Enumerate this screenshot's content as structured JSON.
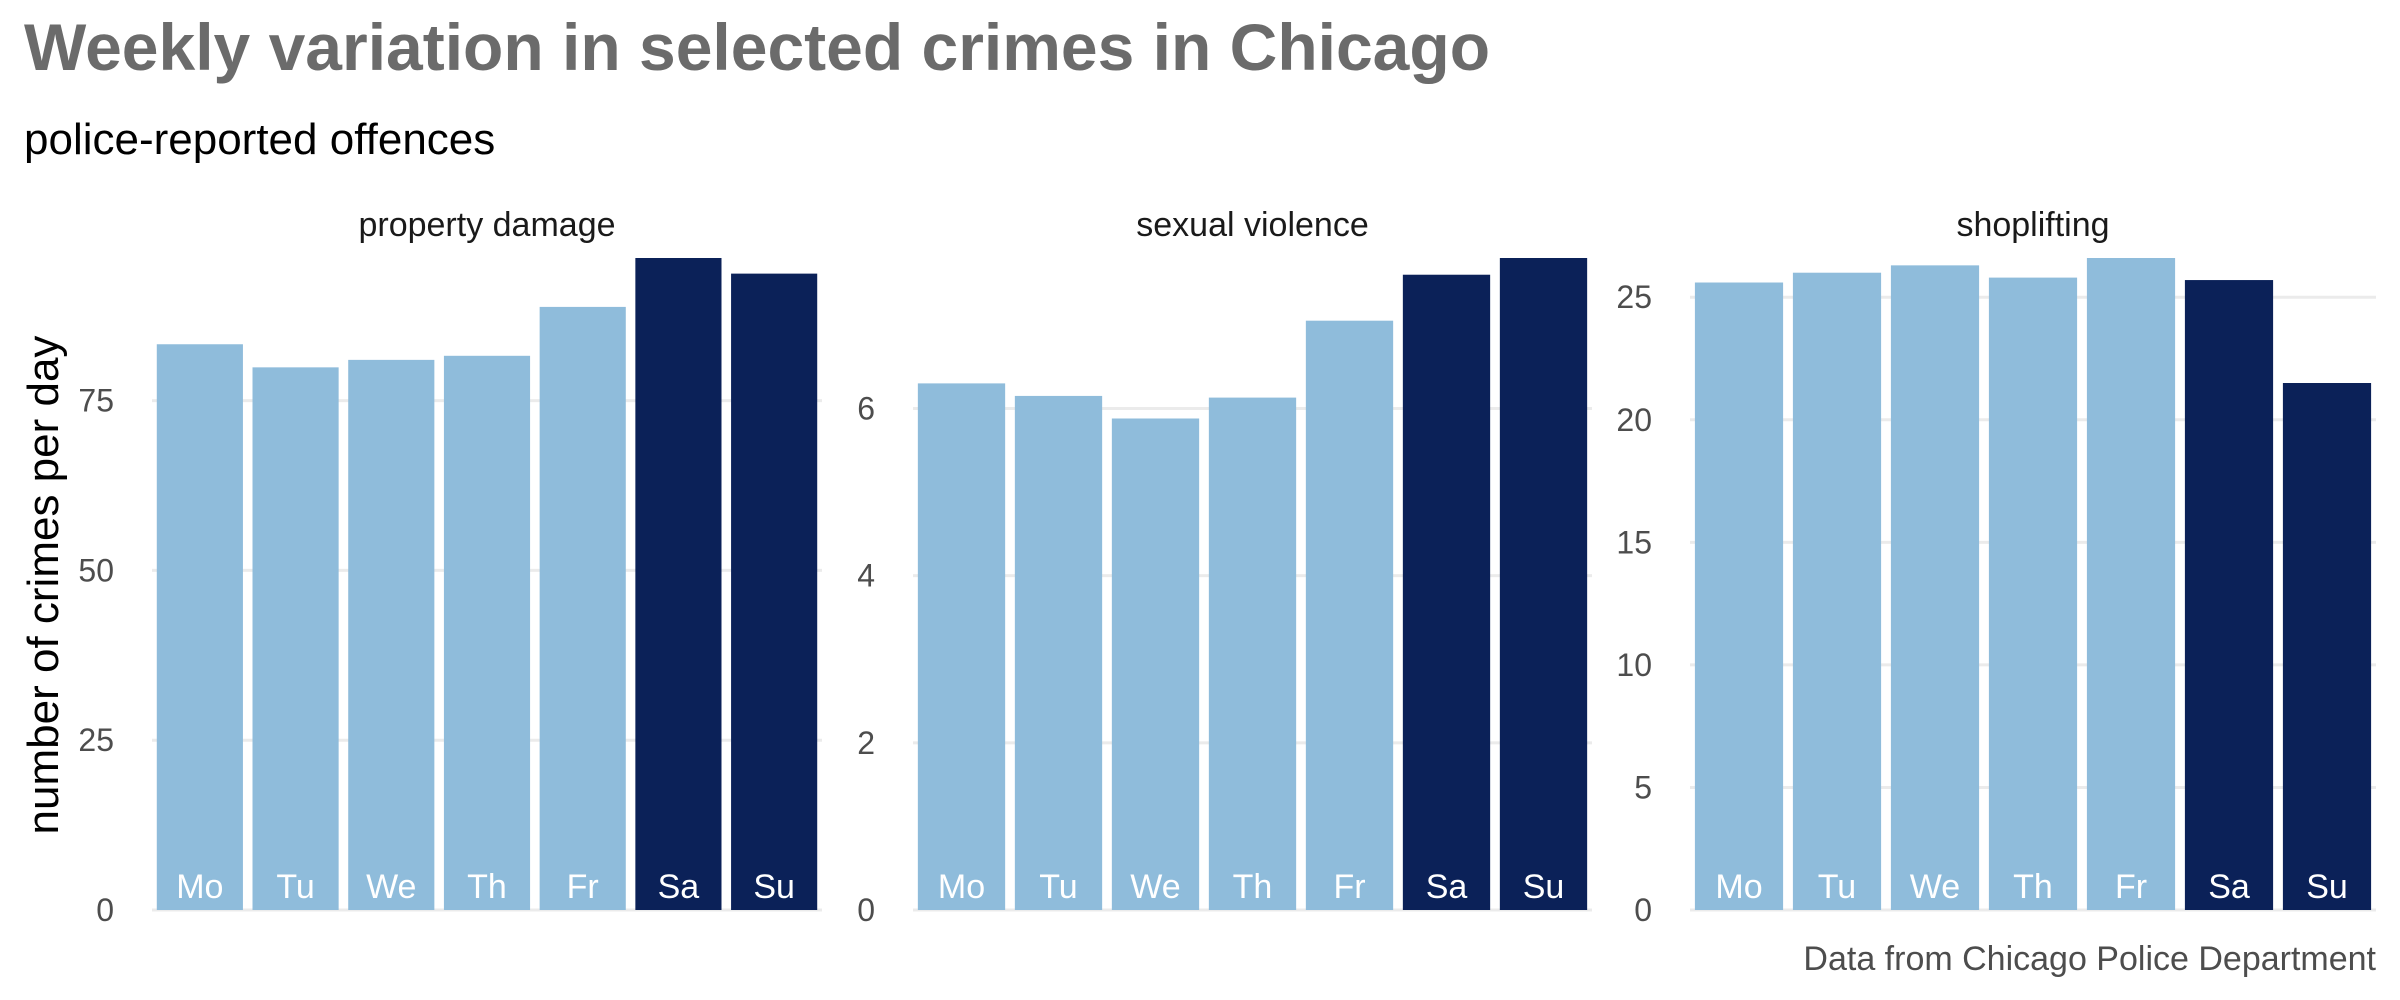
{
  "title": "Weekly variation in selected crimes in Chicago",
  "subtitle": "police-reported offences",
  "caption": "Data from Chicago Police Department",
  "colors": {
    "weekday": "#8fbcdb",
    "weekend": "#0b2158",
    "title": "#6b6b6b",
    "grid": "#ebebeb"
  },
  "chart_data": [
    {
      "type": "bar",
      "title": "property damage",
      "ylabel": "number of crimes per day",
      "categories": [
        "Mo",
        "Tu",
        "We",
        "Th",
        "Fr",
        "Sa",
        "Su"
      ],
      "weekend": [
        false,
        false,
        false,
        false,
        false,
        true,
        true
      ],
      "values": [
        83.3,
        79.9,
        81.0,
        81.6,
        88.8,
        96.0,
        93.7
      ],
      "ylim": [
        0,
        96
      ],
      "yticks": [
        0,
        25,
        50,
        75
      ],
      "grid": true
    },
    {
      "type": "bar",
      "title": "sexual violence",
      "categories": [
        "Mo",
        "Tu",
        "We",
        "Th",
        "Fr",
        "Sa",
        "Su"
      ],
      "weekend": [
        false,
        false,
        false,
        false,
        false,
        true,
        true
      ],
      "values": [
        6.3,
        6.15,
        5.88,
        6.13,
        7.05,
        7.6,
        7.8
      ],
      "ylim": [
        0,
        7.8
      ],
      "yticks": [
        0,
        2,
        4,
        6
      ],
      "grid": true
    },
    {
      "type": "bar",
      "title": "shoplifting",
      "categories": [
        "Mo",
        "Tu",
        "We",
        "Th",
        "Fr",
        "Sa",
        "Su"
      ],
      "weekend": [
        false,
        false,
        false,
        false,
        false,
        true,
        true
      ],
      "values": [
        25.6,
        26.0,
        26.3,
        25.8,
        26.6,
        25.7,
        21.5
      ],
      "ylim": [
        0,
        26.6
      ],
      "yticks": [
        0,
        5,
        10,
        15,
        20,
        25
      ],
      "grid": true
    }
  ]
}
